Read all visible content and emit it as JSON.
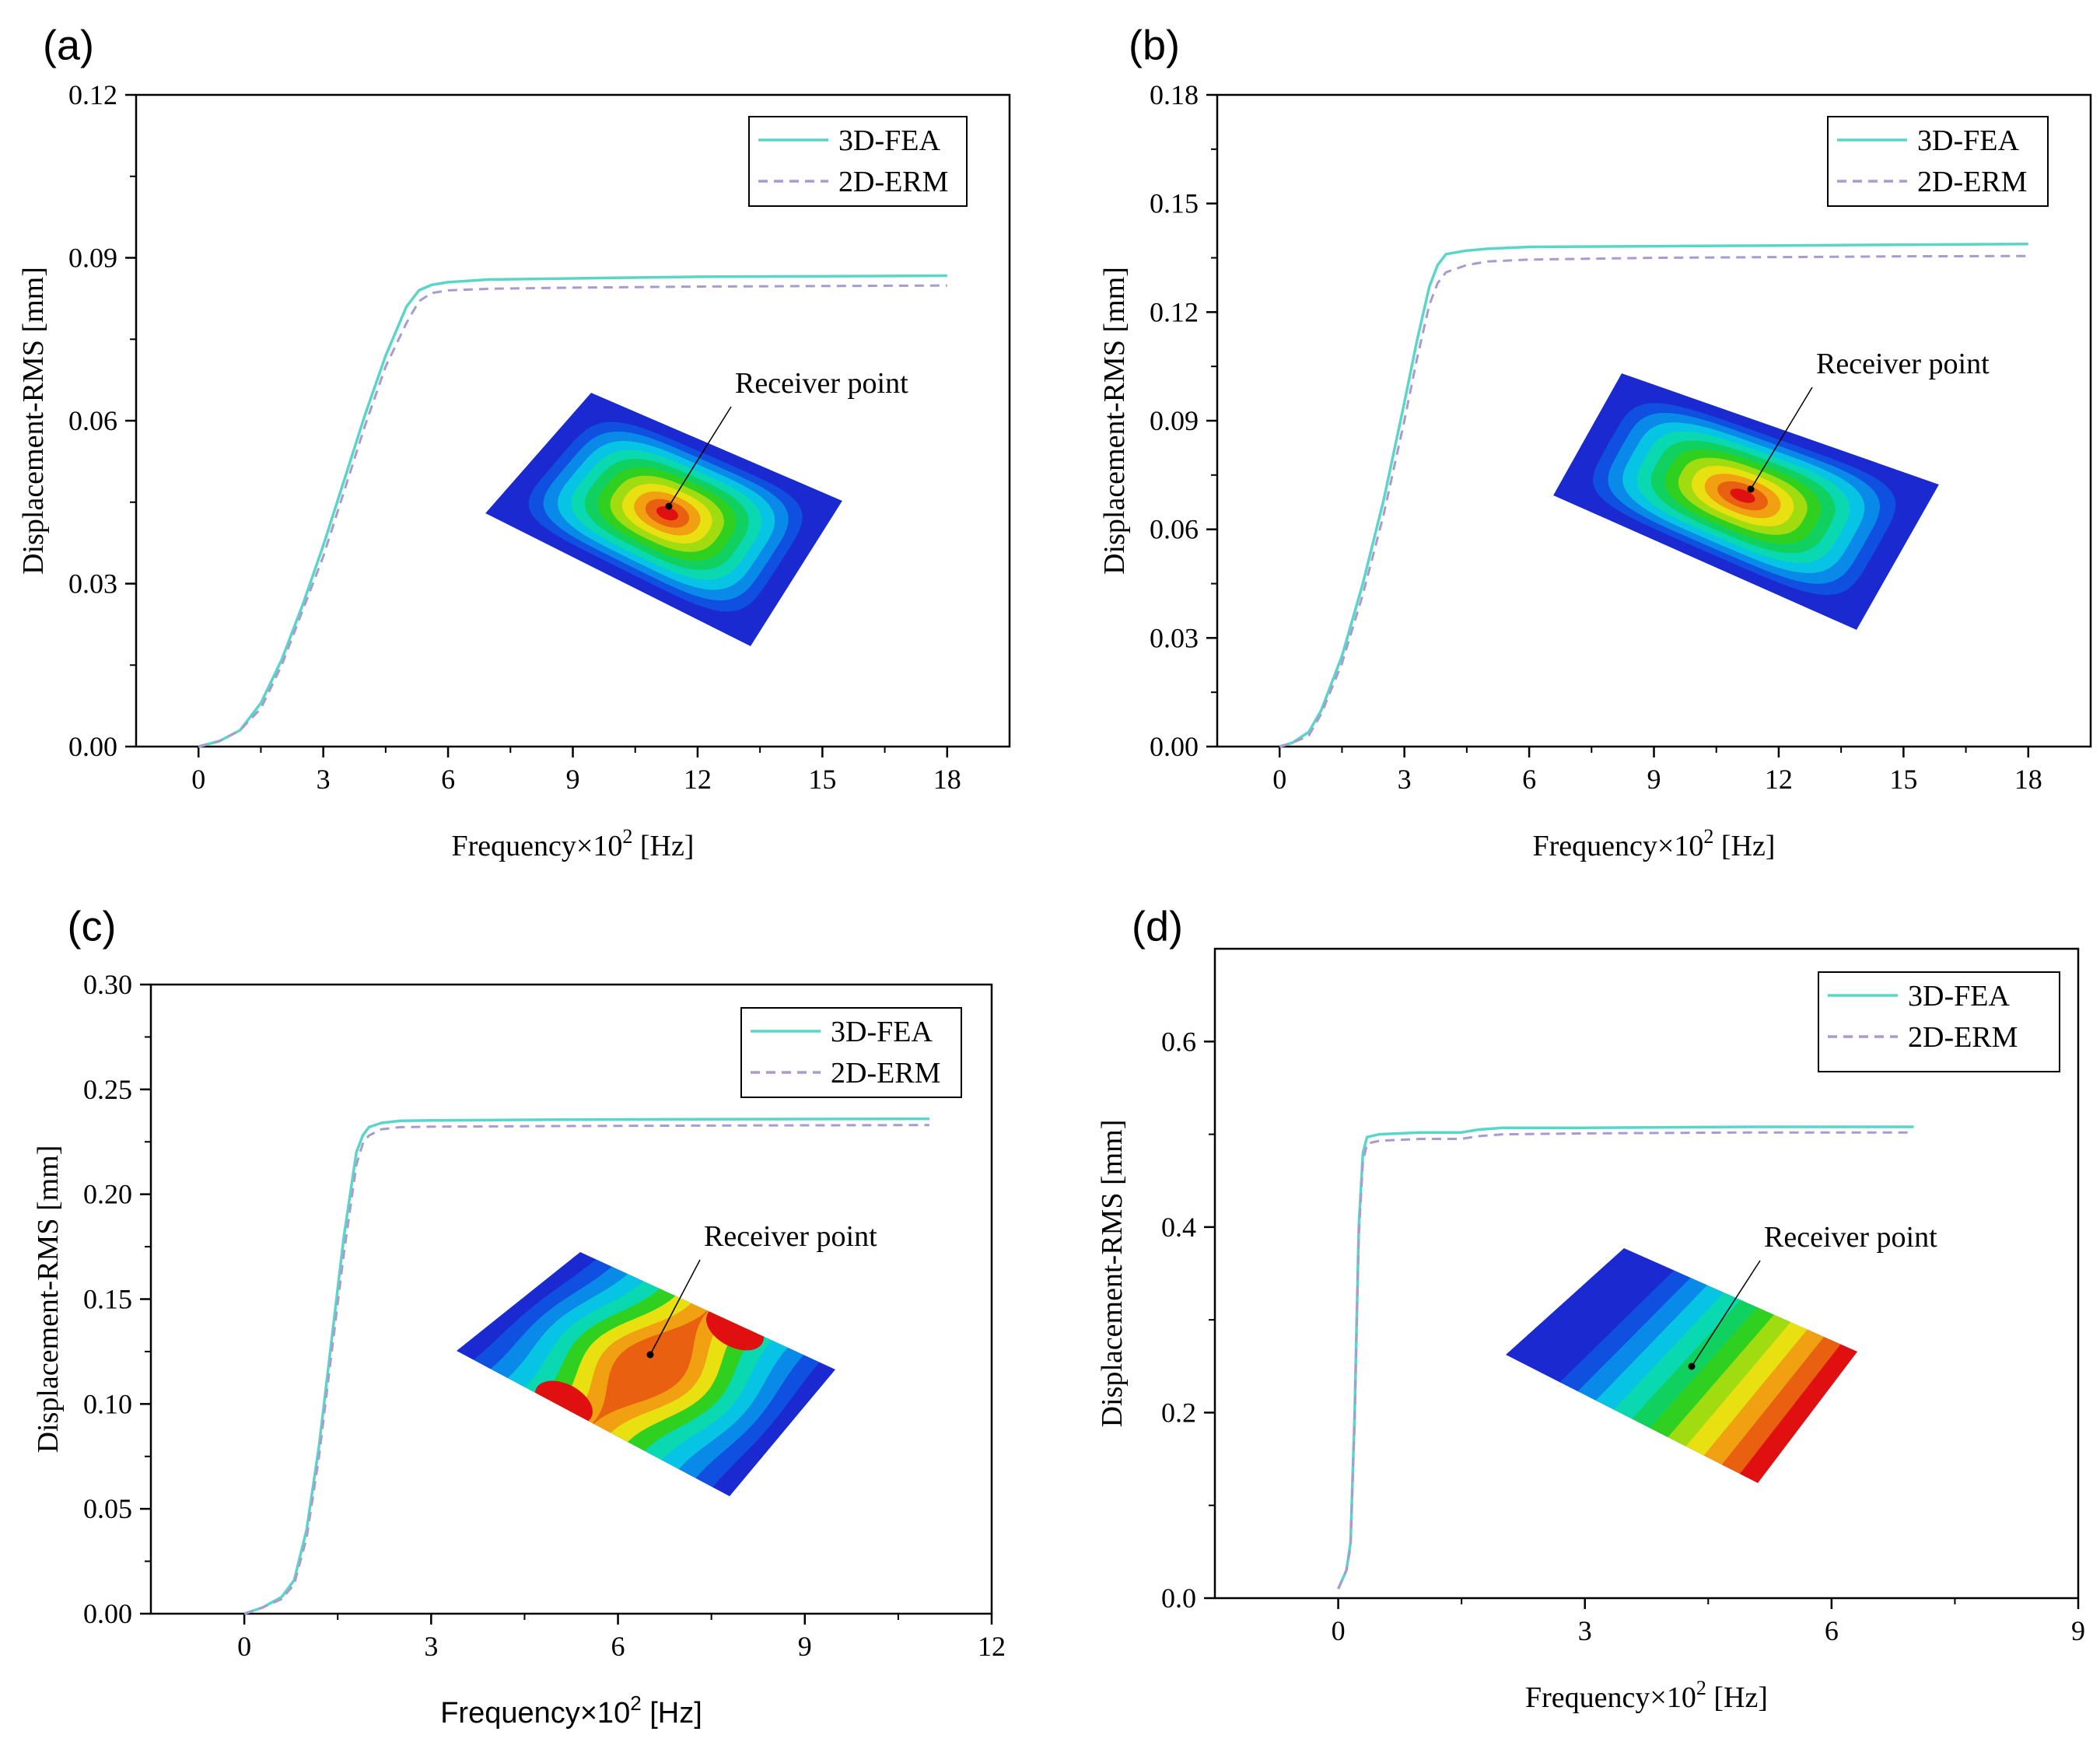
{
  "colors": {
    "fea": "#5ad6c8",
    "erm": "#a99ad0",
    "axis": "#000000",
    "contour_cool": [
      "#1a2ad0",
      "#1050e0",
      "#0a8ae8",
      "#08c4e4",
      "#0ad8b0",
      "#10d060",
      "#30d020",
      "#a0dc10",
      "#e8e010",
      "#f0a010",
      "#e86010",
      "#e01010"
    ]
  },
  "chart_data": [
    {
      "panel": "(a)",
      "type": "line",
      "title": "",
      "xlabel_main": "Frequency×10",
      "xlabel_sup": "2",
      "xlabel_unit": " [Hz]",
      "ylabel": "Displacement-RMS [mm]",
      "xlim": [
        -1.5,
        19.5
      ],
      "ylim": [
        0,
        0.12
      ],
      "xticks": [
        0,
        3,
        6,
        9,
        12,
        15,
        18
      ],
      "xtick_labels": [
        "0",
        "3",
        "6",
        "9",
        "12",
        "15",
        "18"
      ],
      "yticks": [
        0,
        0.03,
        0.06,
        0.09,
        0.12
      ],
      "ytick_labels": [
        "0.00",
        "0.03",
        "0.06",
        "0.09",
        "0.12"
      ],
      "legend": [
        "3D-FEA",
        "2D-ERM"
      ],
      "legend_position": "top-right",
      "annotation": "Receiver point",
      "inset_pattern": "centered-ellipse",
      "series": [
        {
          "name": "3D-FEA",
          "x": [
            0,
            0.5,
            1,
            1.5,
            2,
            2.5,
            3,
            3.5,
            4,
            4.5,
            5,
            5.3,
            5.6,
            6,
            7,
            9,
            12,
            15,
            18
          ],
          "y": [
            0,
            0.001,
            0.003,
            0.008,
            0.016,
            0.026,
            0.037,
            0.049,
            0.061,
            0.072,
            0.081,
            0.084,
            0.085,
            0.0855,
            0.086,
            0.0862,
            0.0865,
            0.0866,
            0.0867
          ]
        },
        {
          "name": "2D-ERM",
          "x": [
            0,
            0.5,
            1,
            1.5,
            2,
            2.5,
            3,
            3.5,
            4,
            4.5,
            5,
            5.3,
            5.6,
            6,
            7,
            9,
            12,
            15,
            18
          ],
          "y": [
            0,
            0.001,
            0.003,
            0.007,
            0.015,
            0.025,
            0.035,
            0.047,
            0.059,
            0.07,
            0.078,
            0.082,
            0.0835,
            0.084,
            0.0843,
            0.0845,
            0.0847,
            0.0848,
            0.0849
          ]
        }
      ]
    },
    {
      "panel": "(b)",
      "type": "line",
      "title": "",
      "xlabel_main": "Frequency×10",
      "xlabel_sup": "2",
      "xlabel_unit": " [Hz]",
      "ylabel": "Displacement-RMS [mm]",
      "xlim": [
        -1.5,
        19.5
      ],
      "ylim": [
        0,
        0.18
      ],
      "xticks": [
        0,
        3,
        6,
        9,
        12,
        15,
        18
      ],
      "xtick_labels": [
        "0",
        "3",
        "6",
        "9",
        "12",
        "15",
        "18"
      ],
      "yticks": [
        0,
        0.03,
        0.06,
        0.09,
        0.12,
        0.15,
        0.18
      ],
      "ytick_labels": [
        "0.00",
        "0.03",
        "0.06",
        "0.09",
        "0.12",
        "0.15",
        "0.18"
      ],
      "legend": [
        "3D-FEA",
        "2D-ERM"
      ],
      "legend_position": "top-right",
      "annotation": "Receiver point",
      "inset_pattern": "centered-ellipse",
      "series": [
        {
          "name": "3D-FEA",
          "x": [
            0,
            0.3,
            0.7,
            1,
            1.5,
            2,
            2.5,
            3,
            3.3,
            3.6,
            3.8,
            4,
            4.5,
            5,
            6,
            9,
            12,
            15,
            18
          ],
          "y": [
            0,
            0.001,
            0.004,
            0.01,
            0.025,
            0.045,
            0.068,
            0.095,
            0.112,
            0.127,
            0.133,
            0.136,
            0.137,
            0.1375,
            0.138,
            0.1382,
            0.1384,
            0.1386,
            0.1388
          ]
        },
        {
          "name": "2D-ERM",
          "x": [
            0,
            0.3,
            0.7,
            1,
            1.5,
            2,
            2.5,
            3,
            3.3,
            3.6,
            3.8,
            4,
            4.5,
            5,
            6,
            9,
            12,
            15,
            18
          ],
          "y": [
            0,
            0.001,
            0.003,
            0.009,
            0.023,
            0.042,
            0.064,
            0.09,
            0.107,
            0.122,
            0.128,
            0.131,
            0.133,
            0.134,
            0.1345,
            0.135,
            0.1352,
            0.1354,
            0.1355
          ]
        }
      ]
    },
    {
      "panel": "(c)",
      "type": "line",
      "title": "",
      "xlabel_main": "Frequency×10",
      "xlabel_sup": "2",
      "xlabel_unit": " [Hz]",
      "ylabel": "Displacement-RMS [mm]",
      "xlim": [
        -1.5,
        12
      ],
      "ylim": [
        0,
        0.3
      ],
      "xticks": [
        0,
        3,
        6,
        9,
        12
      ],
      "xtick_labels": [
        "0",
        "3",
        "6",
        "9",
        "12"
      ],
      "yticks": [
        0,
        0.05,
        0.1,
        0.15,
        0.2,
        0.25,
        0.3
      ],
      "ytick_labels": [
        "0.00",
        "0.05",
        "0.10",
        "0.15",
        "0.20",
        "0.25",
        "0.30"
      ],
      "legend": [
        "3D-FEA",
        "2D-ERM"
      ],
      "legend_position": "top-right",
      "annotation": "Receiver point",
      "inset_pattern": "saddle",
      "series": [
        {
          "name": "3D-FEA",
          "x": [
            0,
            0.3,
            0.6,
            0.8,
            1.0,
            1.2,
            1.4,
            1.6,
            1.8,
            1.9,
            2.0,
            2.2,
            2.5,
            3,
            5,
            8,
            11
          ],
          "y": [
            0,
            0.003,
            0.008,
            0.016,
            0.04,
            0.08,
            0.13,
            0.18,
            0.22,
            0.228,
            0.232,
            0.234,
            0.235,
            0.2352,
            0.2356,
            0.2358,
            0.236
          ]
        },
        {
          "name": "2D-ERM",
          "x": [
            0,
            0.3,
            0.6,
            0.8,
            1.0,
            1.2,
            1.4,
            1.6,
            1.8,
            1.9,
            2.0,
            2.2,
            2.5,
            3,
            5,
            8,
            11
          ],
          "y": [
            0,
            0.003,
            0.007,
            0.014,
            0.036,
            0.075,
            0.124,
            0.172,
            0.214,
            0.224,
            0.228,
            0.231,
            0.232,
            0.2322,
            0.2325,
            0.2328,
            0.233
          ]
        }
      ]
    },
    {
      "panel": "(d)",
      "type": "line",
      "title": "",
      "xlabel_main": "Frequency×10",
      "xlabel_sup": "2",
      "xlabel_unit": " [Hz]",
      "ylabel": "Displacement-RMS [mm]",
      "xlim": [
        -1.5,
        9
      ],
      "ylim": [
        0,
        0.7
      ],
      "xticks": [
        0,
        3,
        6,
        9
      ],
      "xtick_labels": [
        "0",
        "3",
        "6",
        "9"
      ],
      "yticks": [
        0,
        0.2,
        0.4,
        0.6
      ],
      "ytick_labels": [
        "0.0",
        "0.2",
        "0.4",
        "0.6"
      ],
      "legend": [
        "3D-FEA",
        "2D-ERM"
      ],
      "legend_position": "top-right",
      "annotation": "Receiver point",
      "inset_pattern": "linear-gradient",
      "series": [
        {
          "name": "3D-FEA",
          "x": [
            0,
            0.05,
            0.1,
            0.15,
            0.2,
            0.25,
            0.3,
            0.35,
            0.5,
            1.0,
            1.5,
            1.7,
            2.0,
            3,
            5,
            7
          ],
          "y": [
            0.01,
            0.02,
            0.03,
            0.06,
            0.2,
            0.4,
            0.48,
            0.497,
            0.5,
            0.502,
            0.502,
            0.505,
            0.507,
            0.507,
            0.508,
            0.508
          ]
        },
        {
          "name": "2D-ERM",
          "x": [
            0,
            0.05,
            0.1,
            0.15,
            0.2,
            0.25,
            0.3,
            0.35,
            0.5,
            1.0,
            1.5,
            1.7,
            2.0,
            3,
            5,
            7
          ],
          "y": [
            0.01,
            0.02,
            0.03,
            0.055,
            0.19,
            0.39,
            0.47,
            0.49,
            0.493,
            0.495,
            0.495,
            0.498,
            0.5,
            0.501,
            0.502,
            0.502
          ]
        }
      ]
    }
  ]
}
